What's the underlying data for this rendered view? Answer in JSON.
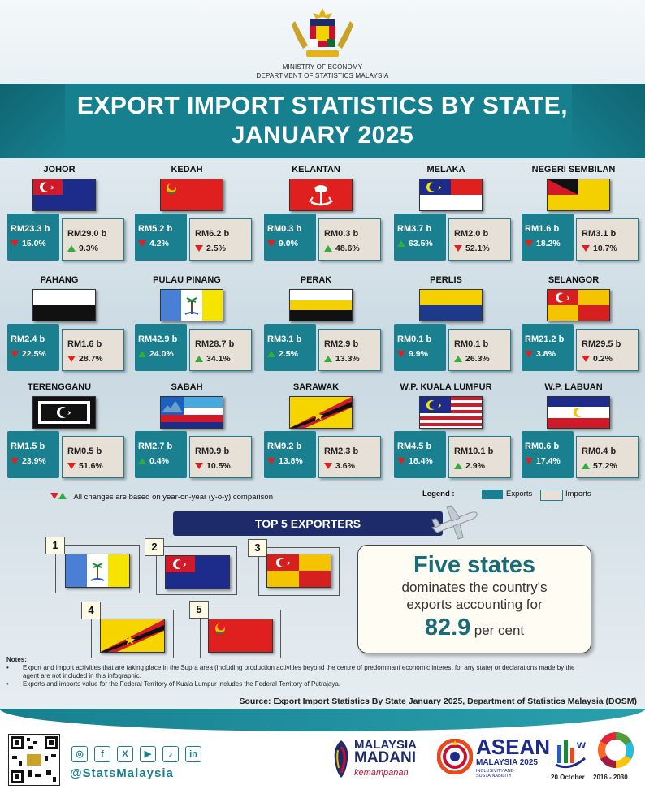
{
  "header": {
    "ministry": "MINISTRY OF ECONOMY",
    "department": "DEPARTMENT OF STATISTICS MALAYSIA",
    "title_line1": "EXPORT IMPORT STATISTICS BY STATE,",
    "title_line2": "JANUARY 2025"
  },
  "states": [
    {
      "name": "JOHOR",
      "export_value": "RM23.3 b",
      "export_change": "15.0%",
      "export_dir": "down",
      "import_value": "RM29.0 b",
      "import_change": "9.3%",
      "import_dir": "up"
    },
    {
      "name": "KEDAH",
      "export_value": "RM5.2 b",
      "export_change": "4.2%",
      "export_dir": "down",
      "import_value": "RM6.2 b",
      "import_change": "2.5%",
      "import_dir": "down"
    },
    {
      "name": "KELANTAN",
      "export_value": "RM0.3 b",
      "export_change": "9.0%",
      "export_dir": "down",
      "import_value": "RM0.3 b",
      "import_change": "48.6%",
      "import_dir": "up"
    },
    {
      "name": "MELAKA",
      "export_value": "RM3.7 b",
      "export_change": "63.5%",
      "export_dir": "up",
      "import_value": "RM2.0 b",
      "import_change": "52.1%",
      "import_dir": "down"
    },
    {
      "name": "NEGERI SEMBILAN",
      "export_value": "RM1.6 b",
      "export_change": "18.2%",
      "export_dir": "down",
      "import_value": "RM3.1 b",
      "import_change": "10.7%",
      "import_dir": "down"
    },
    {
      "name": "PAHANG",
      "export_value": "RM2.4 b",
      "export_change": "22.5%",
      "export_dir": "down",
      "import_value": "RM1.6 b",
      "import_change": "28.7%",
      "import_dir": "down"
    },
    {
      "name": "PULAU PINANG",
      "export_value": "RM42.9 b",
      "export_change": "24.0%",
      "export_dir": "up",
      "import_value": "RM28.7 b",
      "import_change": "34.1%",
      "import_dir": "up"
    },
    {
      "name": "PERAK",
      "export_value": "RM3.1 b",
      "export_change": "2.5%",
      "export_dir": "up",
      "import_value": "RM2.9 b",
      "import_change": "13.3%",
      "import_dir": "up"
    },
    {
      "name": "PERLIS",
      "export_value": "RM0.1 b",
      "export_change": "9.9%",
      "export_dir": "down",
      "import_value": "RM0.1 b",
      "import_change": "26.3%",
      "import_dir": "up"
    },
    {
      "name": "SELANGOR",
      "export_value": "RM21.2 b",
      "export_change": "3.8%",
      "export_dir": "down",
      "import_value": "RM29.5 b",
      "import_change": "0.2%",
      "import_dir": "down"
    },
    {
      "name": "TERENGGANU",
      "export_value": "RM1.5 b",
      "export_change": "23.9%",
      "export_dir": "down",
      "import_value": "RM0.5 b",
      "import_change": "51.6%",
      "import_dir": "down"
    },
    {
      "name": "SABAH",
      "export_value": "RM2.7 b",
      "export_change": "0.4%",
      "export_dir": "up",
      "import_value": "RM0.9 b",
      "import_change": "10.5%",
      "import_dir": "down"
    },
    {
      "name": "SARAWAK",
      "export_value": "RM9.2 b",
      "export_change": "13.8%",
      "export_dir": "down",
      "import_value": "RM2.3 b",
      "import_change": "3.6%",
      "import_dir": "down"
    },
    {
      "name": "W.P. KUALA LUMPUR",
      "export_value": "RM4.5 b",
      "export_change": "18.4%",
      "export_dir": "down",
      "import_value": "RM10.1 b",
      "import_change": "2.9%",
      "import_dir": "up"
    },
    {
      "name": "W.P. LABUAN",
      "export_value": "RM0.6 b",
      "export_change": "17.4%",
      "export_dir": "down",
      "import_value": "RM0.4 b",
      "import_change": "57.2%",
      "import_dir": "up"
    }
  ],
  "legend": {
    "note": "All changes are based on year-on-year (y-o-y) comparison",
    "label": "Legend :",
    "exports": "Exports",
    "imports": "Imports",
    "exports_color": "#1a7f8e",
    "imports_color": "#e6e0d6"
  },
  "top5": {
    "title": "TOP 5 EXPORTERS",
    "ranks": [
      "1",
      "2",
      "3",
      "4",
      "5"
    ],
    "headline": "Five states",
    "line1": "dominates the country's",
    "line2": "exports accounting for",
    "share": "82.9",
    "unit": "per cent"
  },
  "notes": {
    "heading": "Notes:",
    "items": [
      "Export and import activities that are taking place in the Supra area (including production activities beyond the centre of predominant economic interest for any state) or declarations made by the agent are not included in this infographic.",
      "Exports and imports value for the Federal Territory of Kuala Lumpur includes the Federal Territory of Putrajaya."
    ]
  },
  "source": "Source:  Export Import Statistics By State January 2025, Department of Statistics Malaysia (DOSM)",
  "footer": {
    "handle": "@StatsMalaysia",
    "social_icons": [
      "instagram-icon",
      "facebook-icon",
      "x-icon",
      "youtube-icon",
      "tiktok-icon",
      "linkedin-icon"
    ],
    "madani_line1": "MALAYSIA",
    "madani_line2": "MADANI",
    "madani_line3": "kemampanan",
    "asean_line1": "ASEAN",
    "asean_line2": "MALAYSIA 2025",
    "asean_line3": "INCLUSIVITY AND SUSTAINABILITY",
    "wsd_date": "20 October",
    "sdg_years": "2016 - 2030"
  }
}
